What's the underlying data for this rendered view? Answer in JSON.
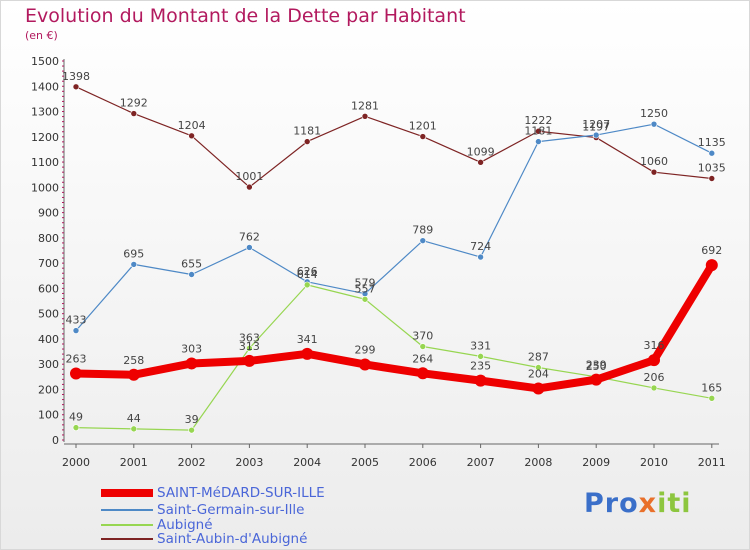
{
  "title": "Evolution du Montant de la Dette par Habitant",
  "subtitle": "(en €)",
  "logo": {
    "p1": "Pro",
    "p2": "x",
    "p3": "iti"
  },
  "chart_data": {
    "type": "line",
    "x": [
      "2000",
      "2001",
      "2002",
      "2003",
      "2004",
      "2005",
      "2006",
      "2007",
      "2008",
      "2009",
      "2010",
      "2011"
    ],
    "ylim": [
      0,
      1500
    ],
    "yticks": [
      0,
      100,
      200,
      300,
      400,
      500,
      600,
      700,
      800,
      900,
      1000,
      1100,
      1200,
      1300,
      1400,
      1500
    ],
    "grid": "none",
    "legend_position": "bottom-left",
    "series": [
      {
        "name": "SAINT-MéDARD-SUR-ILLE",
        "color": "#ee0000",
        "values": [
          263,
          258,
          303,
          313,
          341,
          299,
          264,
          235,
          204,
          239,
          316,
          692
        ]
      },
      {
        "name": "Saint-Germain-sur-Ille",
        "color": "#4e89c6",
        "values": [
          433,
          695,
          655,
          762,
          626,
          579,
          789,
          724,
          1181,
          1207,
          1250,
          1135
        ]
      },
      {
        "name": "Aubigné",
        "color": "#97d651",
        "values": [
          49,
          44,
          39,
          363,
          614,
          557,
          370,
          331,
          287,
          250,
          206,
          165
        ]
      },
      {
        "name": "Saint-Aubin-d'Aubigné",
        "color": "#7e2424",
        "values": [
          1398,
          1292,
          1204,
          1001,
          1181,
          1281,
          1201,
          1099,
          1222,
          1197,
          1060,
          1035
        ]
      }
    ]
  }
}
